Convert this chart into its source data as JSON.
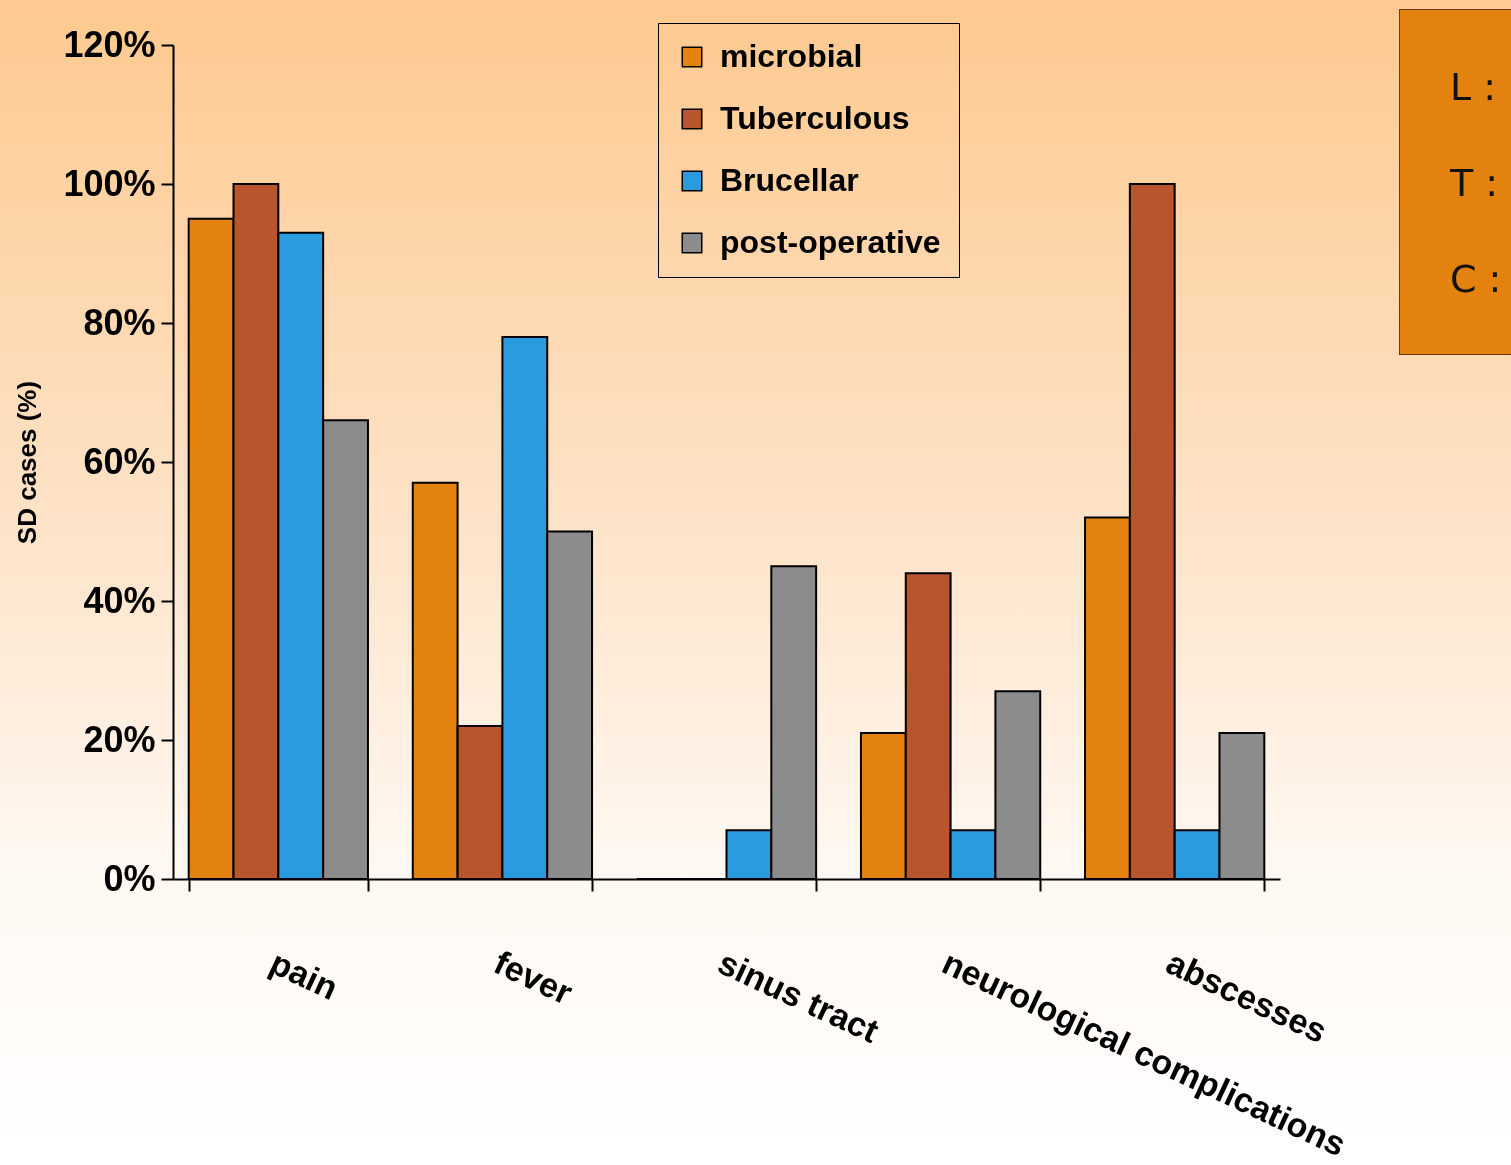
{
  "chart_data": {
    "type": "bar",
    "ylabel": "SD cases (%)",
    "categories": [
      "pain",
      "fever",
      "sinus tract",
      "neurological complications",
      "abscesses"
    ],
    "series": [
      {
        "name": "microbial",
        "color": "#e3820f",
        "values": [
          95,
          57,
          0,
          21,
          52
        ]
      },
      {
        "name": "Tuberculous",
        "color": "#b9552c",
        "values": [
          100,
          22,
          0,
          44,
          100
        ]
      },
      {
        "name": "Brucellar",
        "color": "#2b9be0",
        "values": [
          93,
          78,
          7,
          7,
          7
        ]
      },
      {
        "name": "post-operative",
        "color": "#8c8c8c",
        "values": [
          66,
          50,
          45,
          27,
          21
        ]
      }
    ],
    "ylim": [
      0,
      120
    ],
    "yticks": [
      {
        "value": 0,
        "label": "0%"
      },
      {
        "value": 20,
        "label": "20%"
      },
      {
        "value": 40,
        "label": "40%"
      },
      {
        "value": 60,
        "label": "60%"
      },
      {
        "value": 80,
        "label": "80%"
      },
      {
        "value": 100,
        "label": "100%"
      },
      {
        "value": 120,
        "label": "120%"
      }
    ],
    "legend": "top right",
    "grid": false,
    "annotations": [
      "L :",
      "T :",
      "C :"
    ]
  }
}
